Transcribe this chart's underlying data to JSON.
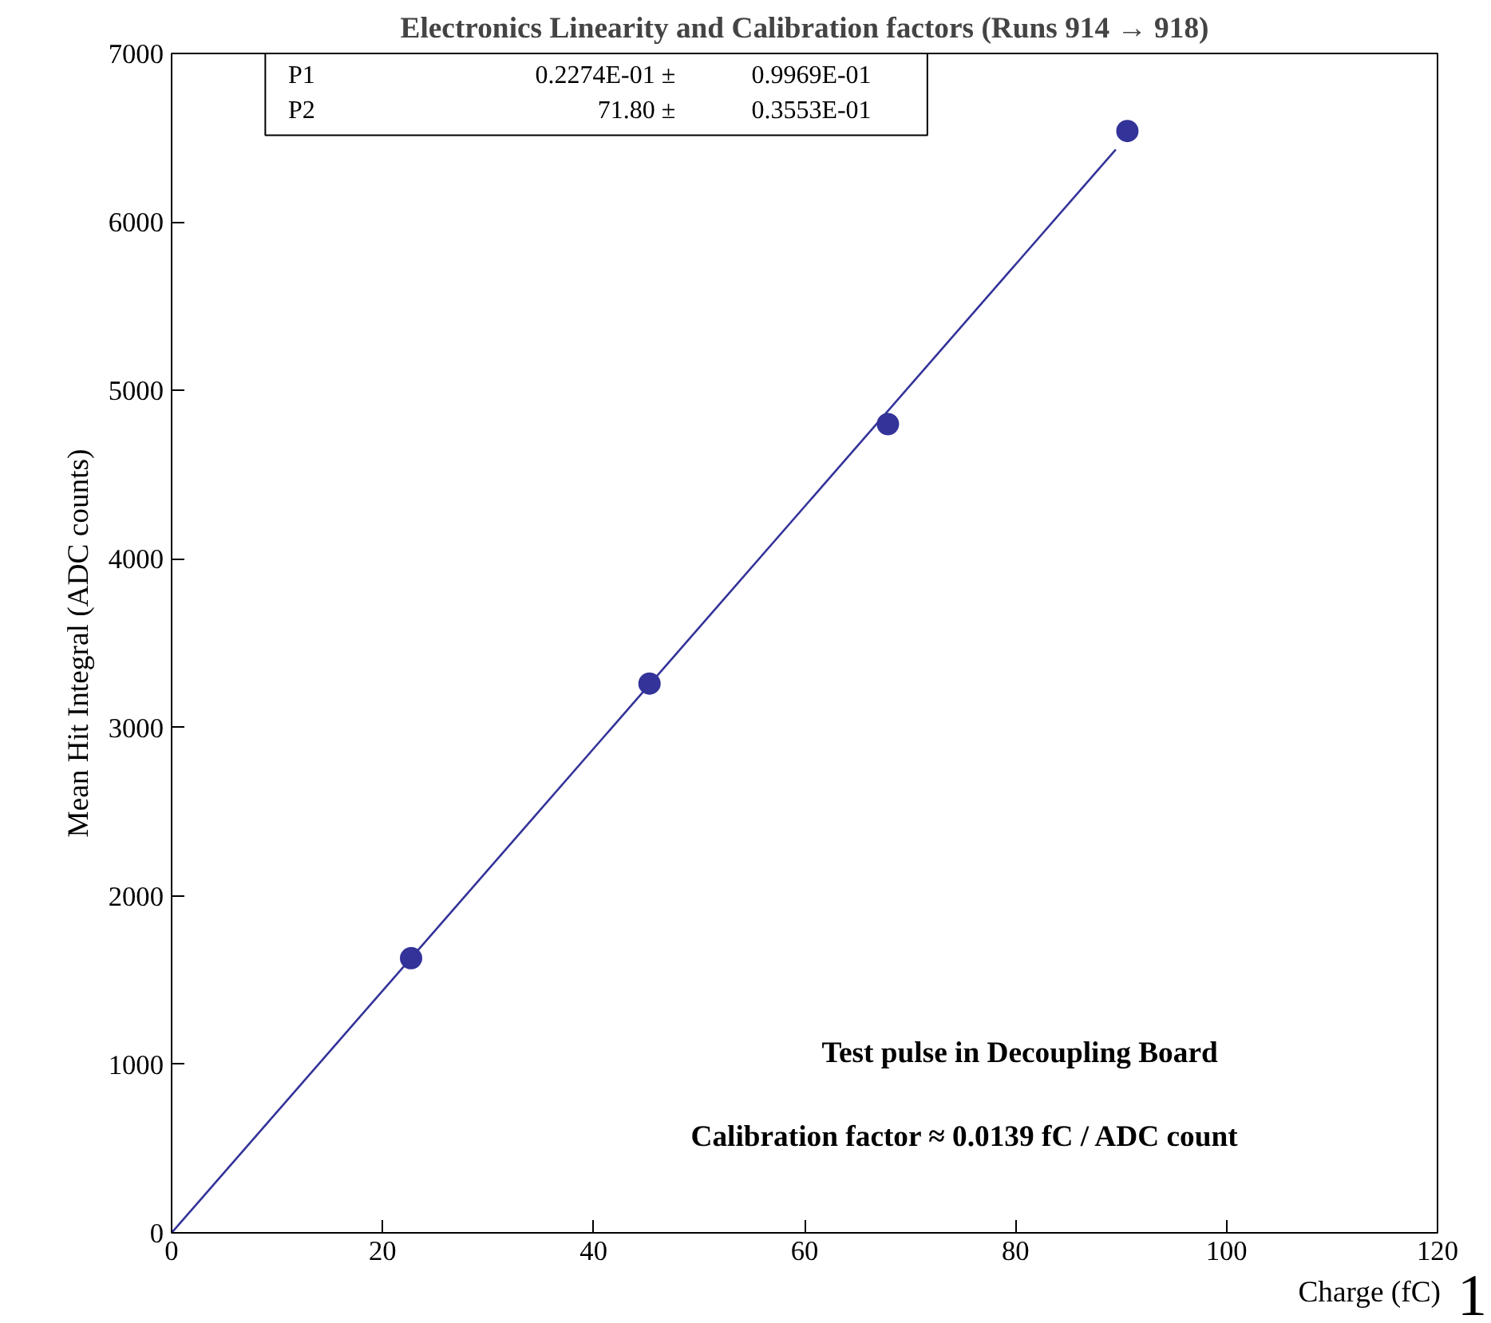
{
  "chart_data": {
    "type": "scatter",
    "title": "Electronics Linearity and Calibration factors (Runs 914 → 918)",
    "xlabel": "Charge (fC)",
    "ylabel": "Mean Hit Integral (ADC counts)",
    "xlim": [
      0,
      120
    ],
    "ylim": [
      0,
      7000
    ],
    "xticks": [
      0,
      20,
      40,
      60,
      80,
      100,
      120
    ],
    "yticks": [
      0,
      1000,
      2000,
      3000,
      4000,
      5000,
      6000,
      7000
    ],
    "grid": false,
    "series": [
      {
        "marker": "circle",
        "color": "#333399",
        "x": [
          22.7,
          45.3,
          67.9,
          90.6
        ],
        "values": [
          1630,
          3260,
          4800,
          6540
        ]
      },
      {
        "type": "line",
        "marker": "none",
        "color": "#33339a",
        "x": [
          0,
          89.5
        ],
        "values": [
          0,
          6430
        ]
      }
    ],
    "annotations": [
      "P1",
      "0.2274E-01 ±",
      "0.9969E-01",
      "P2",
      "71.80 ±",
      "0.3553E-01",
      "Test pulse in Decoupling Board",
      "Calibration factor ≈ 0.0139 fC / ADC count",
      "1"
    ]
  }
}
